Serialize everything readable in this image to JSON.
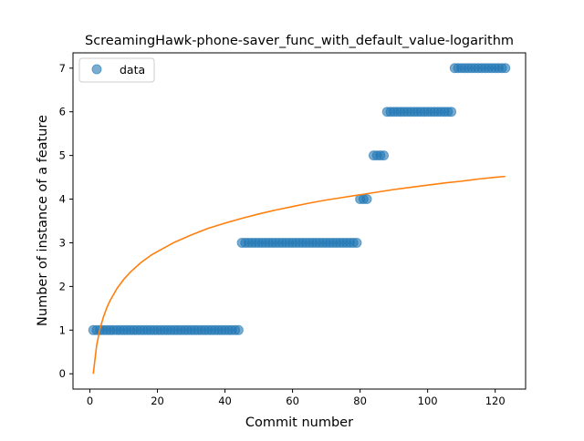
{
  "chart_data": {
    "type": "scatter",
    "title": "ScreamingHawk-phone-saver_func_with_default_value-logarithm",
    "xlabel": "Commit number",
    "ylabel": "Number of instance of a feature",
    "xlim": [
      -5,
      129
    ],
    "ylim": [
      -0.35,
      7.35
    ],
    "xticks": [
      0,
      20,
      40,
      60,
      80,
      100,
      120
    ],
    "yticks": [
      0,
      1,
      2,
      3,
      4,
      5,
      6,
      7
    ],
    "grid": false,
    "legend": {
      "placement": "upper-left",
      "entries": [
        "data"
      ]
    },
    "series": [
      {
        "name": "data",
        "kind": "scatter",
        "color": "#1f77b4",
        "points": [
          [
            1,
            1
          ],
          [
            2,
            1
          ],
          [
            3,
            1
          ],
          [
            4,
            1
          ],
          [
            5,
            1
          ],
          [
            6,
            1
          ],
          [
            7,
            1
          ],
          [
            8,
            1
          ],
          [
            9,
            1
          ],
          [
            10,
            1
          ],
          [
            11,
            1
          ],
          [
            12,
            1
          ],
          [
            13,
            1
          ],
          [
            14,
            1
          ],
          [
            15,
            1
          ],
          [
            16,
            1
          ],
          [
            17,
            1
          ],
          [
            18,
            1
          ],
          [
            19,
            1
          ],
          [
            20,
            1
          ],
          [
            21,
            1
          ],
          [
            22,
            1
          ],
          [
            23,
            1
          ],
          [
            24,
            1
          ],
          [
            25,
            1
          ],
          [
            26,
            1
          ],
          [
            27,
            1
          ],
          [
            28,
            1
          ],
          [
            29,
            1
          ],
          [
            30,
            1
          ],
          [
            31,
            1
          ],
          [
            32,
            1
          ],
          [
            33,
            1
          ],
          [
            34,
            1
          ],
          [
            35,
            1
          ],
          [
            36,
            1
          ],
          [
            37,
            1
          ],
          [
            38,
            1
          ],
          [
            39,
            1
          ],
          [
            40,
            1
          ],
          [
            41,
            1
          ],
          [
            42,
            1
          ],
          [
            43,
            1
          ],
          [
            44,
            1
          ],
          [
            45,
            3
          ],
          [
            46,
            3
          ],
          [
            47,
            3
          ],
          [
            48,
            3
          ],
          [
            49,
            3
          ],
          [
            50,
            3
          ],
          [
            51,
            3
          ],
          [
            52,
            3
          ],
          [
            53,
            3
          ],
          [
            54,
            3
          ],
          [
            55,
            3
          ],
          [
            56,
            3
          ],
          [
            57,
            3
          ],
          [
            58,
            3
          ],
          [
            59,
            3
          ],
          [
            60,
            3
          ],
          [
            61,
            3
          ],
          [
            62,
            3
          ],
          [
            63,
            3
          ],
          [
            64,
            3
          ],
          [
            65,
            3
          ],
          [
            66,
            3
          ],
          [
            67,
            3
          ],
          [
            68,
            3
          ],
          [
            69,
            3
          ],
          [
            70,
            3
          ],
          [
            71,
            3
          ],
          [
            72,
            3
          ],
          [
            73,
            3
          ],
          [
            74,
            3
          ],
          [
            75,
            3
          ],
          [
            76,
            3
          ],
          [
            77,
            3
          ],
          [
            78,
            3
          ],
          [
            79,
            3
          ],
          [
            80,
            4
          ],
          [
            81,
            4
          ],
          [
            82,
            4
          ],
          [
            84,
            5
          ],
          [
            85,
            5
          ],
          [
            86,
            5
          ],
          [
            87,
            5
          ],
          [
            88,
            6
          ],
          [
            89,
            6
          ],
          [
            90,
            6
          ],
          [
            91,
            6
          ],
          [
            92,
            6
          ],
          [
            93,
            6
          ],
          [
            94,
            6
          ],
          [
            95,
            6
          ],
          [
            96,
            6
          ],
          [
            97,
            6
          ],
          [
            98,
            6
          ],
          [
            99,
            6
          ],
          [
            100,
            6
          ],
          [
            101,
            6
          ],
          [
            102,
            6
          ],
          [
            103,
            6
          ],
          [
            104,
            6
          ],
          [
            105,
            6
          ],
          [
            106,
            6
          ],
          [
            107,
            6
          ],
          [
            108,
            7
          ],
          [
            109,
            7
          ],
          [
            110,
            7
          ],
          [
            111,
            7
          ],
          [
            112,
            7
          ],
          [
            113,
            7
          ],
          [
            114,
            7
          ],
          [
            115,
            7
          ],
          [
            116,
            7
          ],
          [
            117,
            7
          ],
          [
            118,
            7
          ],
          [
            119,
            7
          ],
          [
            120,
            7
          ],
          [
            121,
            7
          ],
          [
            122,
            7
          ],
          [
            123,
            7
          ]
        ]
      },
      {
        "kind": "line",
        "color": "#ff7f0e",
        "x": [
          1,
          2,
          3,
          4,
          5,
          6,
          8,
          10,
          12,
          15,
          18,
          20,
          25,
          30,
          35,
          40,
          45,
          50,
          55,
          60,
          65,
          70,
          75,
          80,
          85,
          90,
          95,
          100,
          105,
          110,
          115,
          120,
          123
        ],
        "y": [
          0,
          0.65,
          1.03,
          1.3,
          1.51,
          1.68,
          1.95,
          2.16,
          2.33,
          2.54,
          2.71,
          2.8,
          3.01,
          3.18,
          3.33,
          3.45,
          3.56,
          3.66,
          3.75,
          3.83,
          3.91,
          3.98,
          4.04,
          4.1,
          4.16,
          4.22,
          4.27,
          4.32,
          4.37,
          4.41,
          4.46,
          4.5,
          4.52
        ]
      }
    ]
  }
}
